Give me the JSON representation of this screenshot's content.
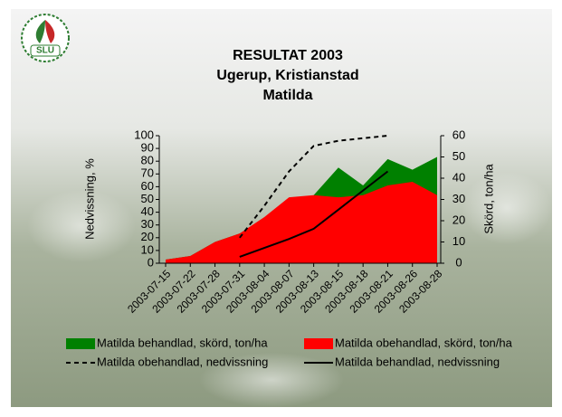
{
  "logo_text": "SLU",
  "chart_data": {
    "type": "area-line",
    "title": [
      "RESULTAT 2003",
      "Ugerup, Kristianstad",
      "Matilda"
    ],
    "ylabel": "Nedvissning, %",
    "y2label": "Skörd, ton/ha",
    "categories": [
      "2003-07-15",
      "2003-07-22",
      "2003-07-28",
      "2003-07-31",
      "2003-08-04",
      "2003-08-07",
      "2003-08-13",
      "2003-08-15",
      "2003-08-18",
      "2003-08-21",
      "2003-08-26",
      "2003-08-28"
    ],
    "ylim": [
      0,
      100
    ],
    "yticks": [
      0,
      10,
      20,
      30,
      40,
      50,
      60,
      70,
      80,
      90,
      100
    ],
    "y2lim": [
      0,
      60
    ],
    "y2ticks": [
      0,
      10,
      20,
      30,
      40,
      50,
      60
    ],
    "series": [
      {
        "name": "Matilda behandlad, skörd, ton/ha",
        "kind": "area",
        "axis": "y2",
        "color": "#008000",
        "values": [
          1.7,
          3.4,
          10,
          14,
          19.6,
          27,
          32,
          45,
          36.6,
          49,
          44,
          50
        ]
      },
      {
        "name": "Matilda obehandlad, skörd, ton/ha",
        "kind": "area",
        "axis": "y2",
        "color": "#ff0000",
        "values": [
          1.7,
          3.4,
          10,
          14,
          21.7,
          31,
          32,
          31,
          32,
          36.6,
          38.3,
          32
        ]
      },
      {
        "name": "Matilda obehandlad, nedvissning",
        "kind": "line",
        "dashed": true,
        "color": "#000000",
        "values": [
          null,
          null,
          null,
          20,
          45,
          72,
          92,
          96,
          98,
          100,
          null,
          null
        ]
      },
      {
        "name": "Matilda behandlad, nedvissning",
        "kind": "line",
        "dashed": false,
        "color": "#000000",
        "values": [
          null,
          null,
          null,
          5,
          12,
          19,
          27,
          42,
          57,
          72,
          null,
          null
        ]
      }
    ]
  }
}
